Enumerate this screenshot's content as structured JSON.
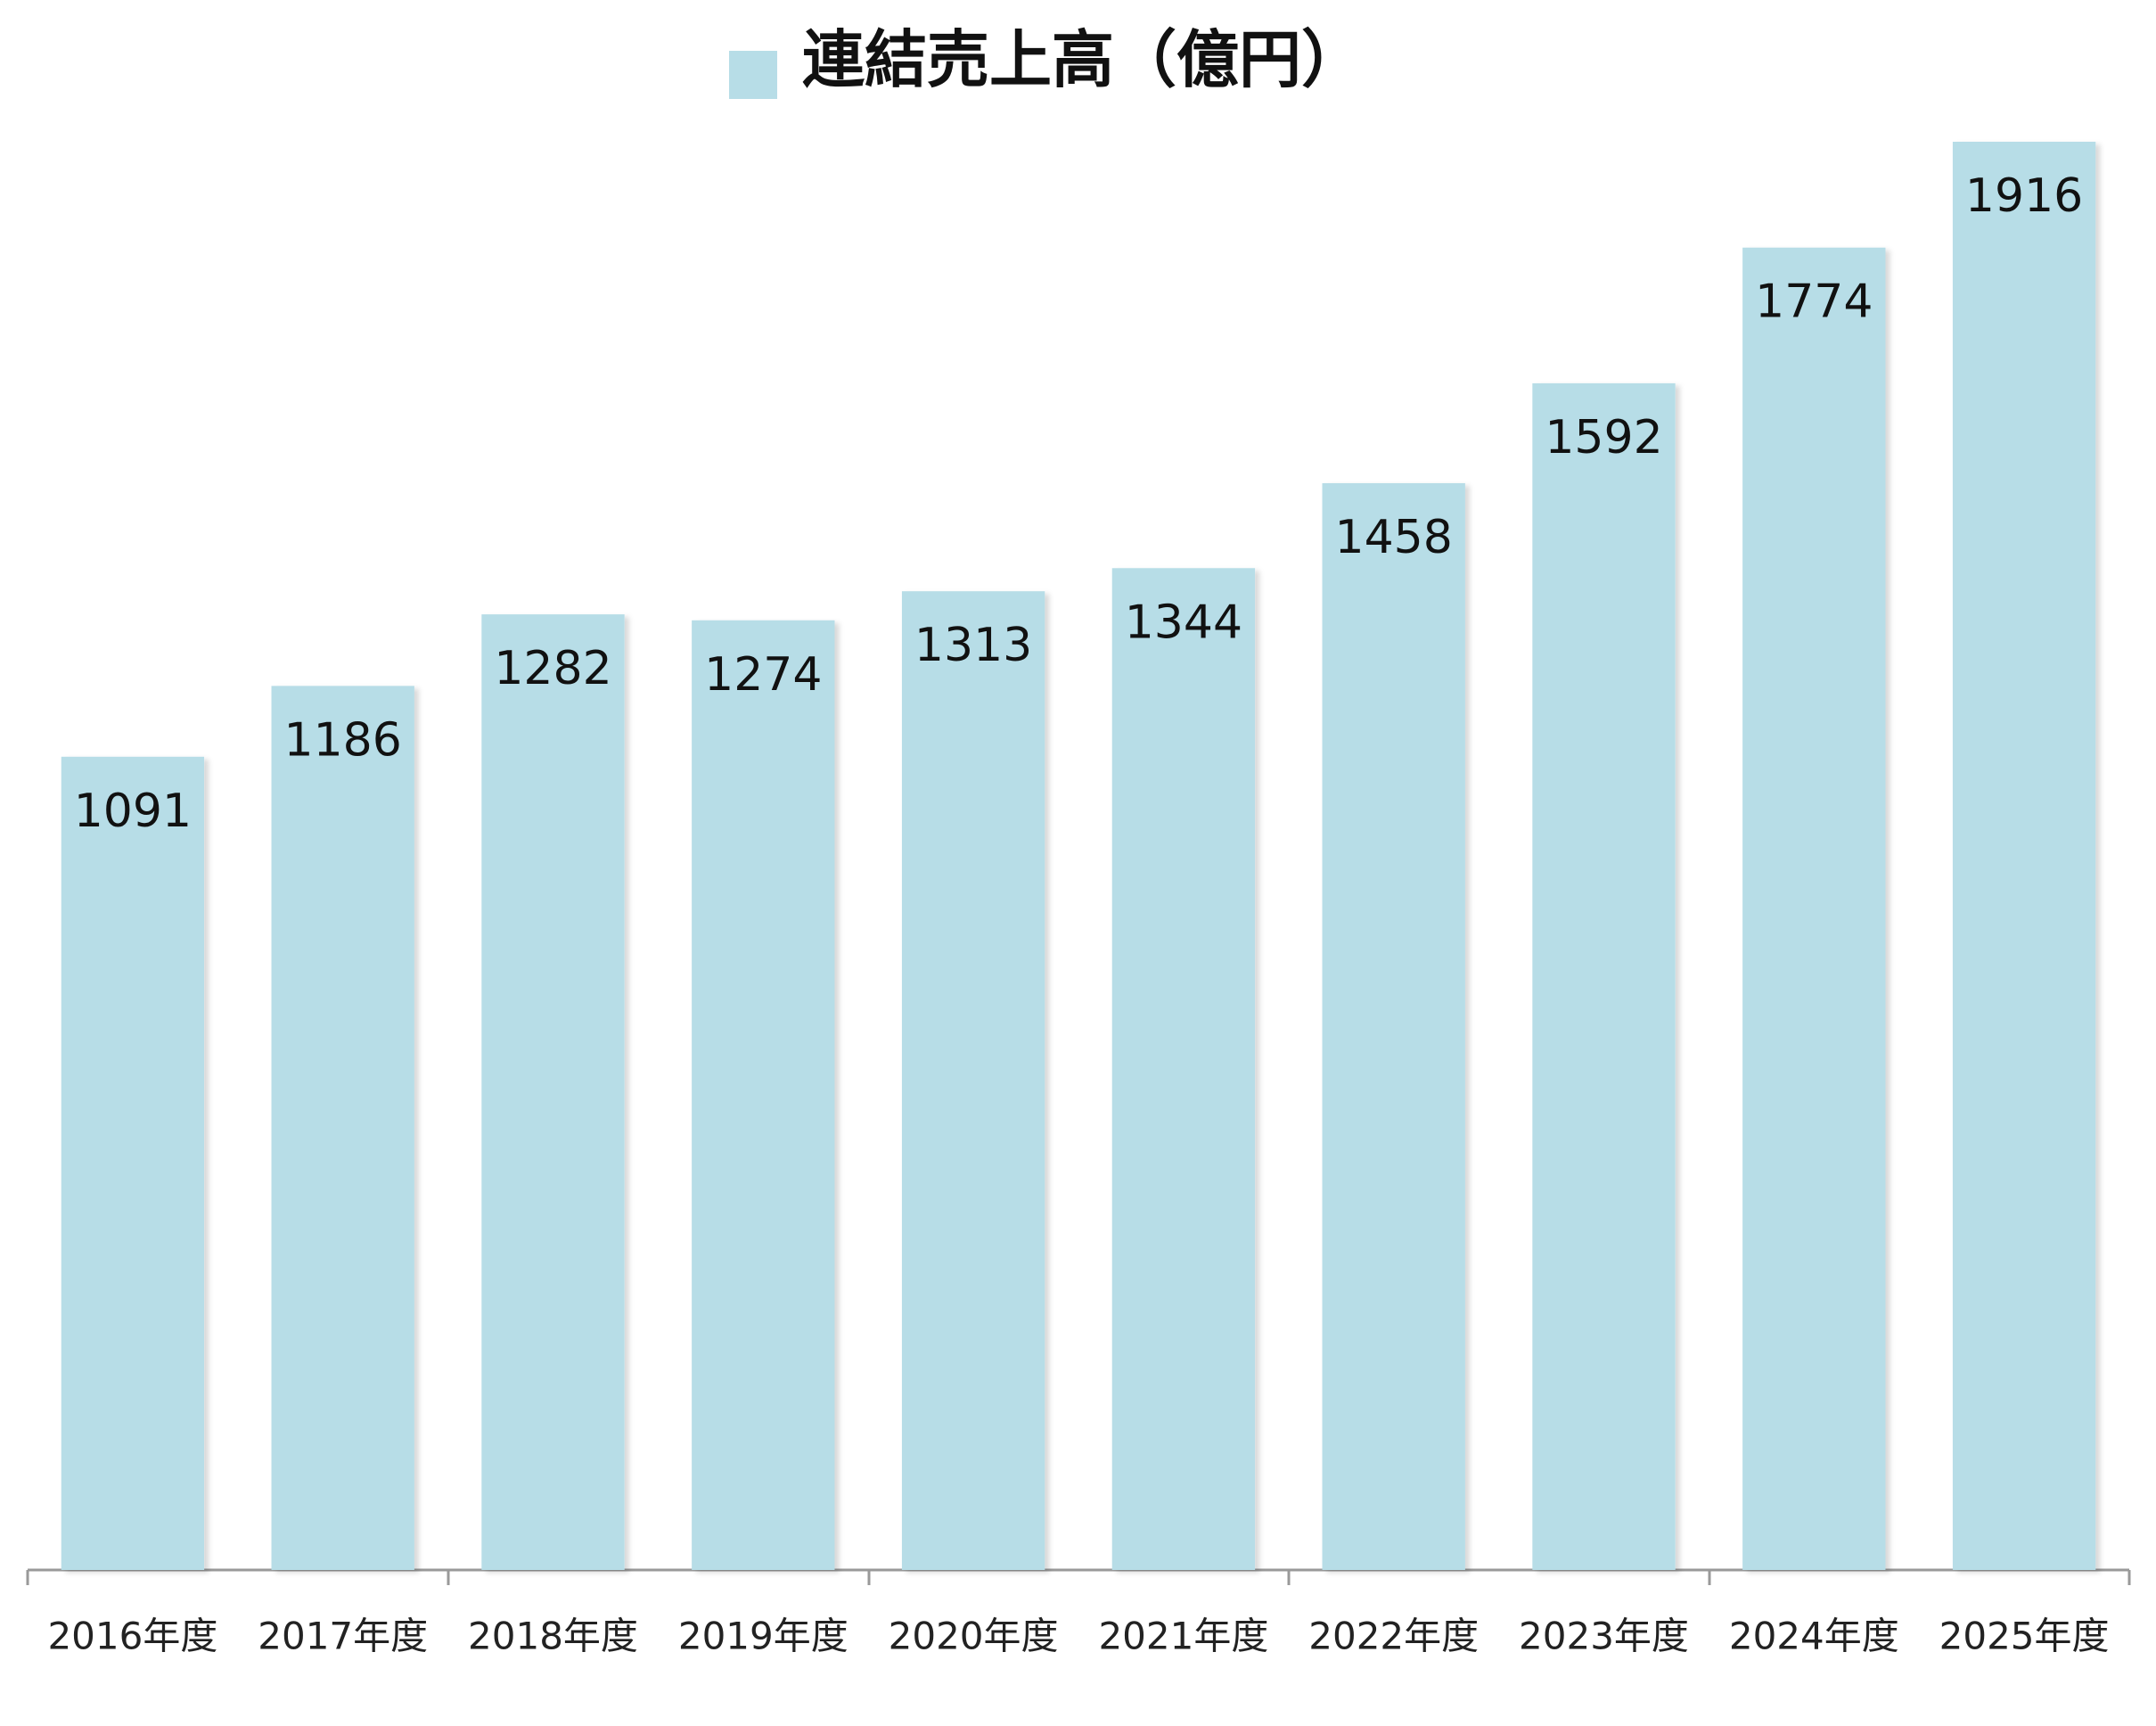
{
  "chart_data": {
    "type": "bar",
    "series": [
      {
        "name": "連結売上高（億円）",
        "color": "#b7dde7",
        "values": [
          1091,
          1186,
          1282,
          1274,
          1313,
          1344,
          1458,
          1592,
          1774,
          1916
        ]
      }
    ],
    "categories": [
      "2016年度",
      "2017年度",
      "2018年度",
      "2019年度",
      "2020年度",
      "2021年度",
      "2022年度",
      "2023年度",
      "2024年度",
      "2025年度"
    ],
    "legend": "top"
  }
}
